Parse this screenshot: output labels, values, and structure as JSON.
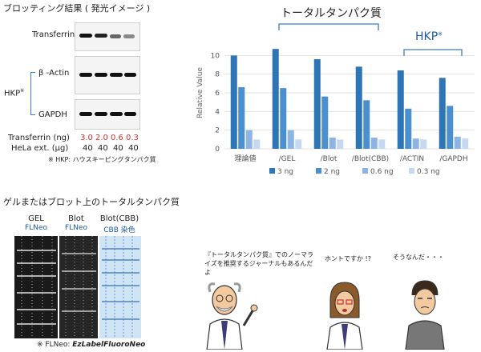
{
  "blot_section": {
    "title": "ブロッティング結果 ( 発光イメージ )",
    "row_labels": {
      "transferrin": "Transferrin",
      "actin": "β -Actin",
      "gapdh": "GAPDH"
    },
    "hkp_label": "HKP",
    "hkp_mark": "※",
    "table": {
      "transferrin_label": "Transferrin (ng)",
      "transferrin_values": [
        "3.0",
        "2.0",
        "0.6",
        "0.3"
      ],
      "hela_label": "HeLa ext. (µg)",
      "hela_values": [
        "40",
        "40",
        "40",
        "40"
      ]
    },
    "note": "※ HKP: ハウスキーピングタンパク質"
  },
  "gel_section": {
    "title": "ゲルまたはブロット上のトータルタンパク質",
    "lanes": [
      {
        "label": "GEL",
        "sub": "FLNeo"
      },
      {
        "label": "Blot",
        "sub": "FLNeo"
      },
      {
        "label": "Blot(CBB)",
        "sub": "CBB 染色"
      }
    ],
    "footnote_prefix": "※ FLNeo: ",
    "footnote_brand": "EzLabelFluoroNeo"
  },
  "chart_data": {
    "type": "bar",
    "ylabel": "Relative Value",
    "ylim": [
      0,
      12
    ],
    "yticks": [
      0,
      2,
      4,
      6,
      8,
      10
    ],
    "grid": true,
    "legend_position": "bottom",
    "group_labels": {
      "total": "トータルタンパク質",
      "hkp": "HKP",
      "hkp_mark": "※"
    },
    "categories": [
      "理論値",
      "/GEL",
      "/Blot",
      "/Blot(CBB)",
      "/ACTIN",
      "/GAPDH"
    ],
    "series": [
      {
        "name": "3 ng",
        "color": "#2e75b6",
        "values": [
          10.0,
          10.7,
          9.6,
          8.8,
          8.4,
          7.6
        ]
      },
      {
        "name": "2 ng",
        "color": "#4a8fd0",
        "values": [
          6.6,
          6.5,
          5.6,
          5.2,
          4.3,
          4.6
        ]
      },
      {
        "name": "0.6 ng",
        "color": "#8db4e2",
        "values": [
          2.0,
          2.0,
          1.2,
          1.2,
          1.1,
          1.3
        ]
      },
      {
        "name": "0.3 ng",
        "color": "#c5d9f1",
        "values": [
          1.0,
          1.0,
          1.0,
          1.0,
          1.0,
          1.1
        ]
      }
    ]
  },
  "dialogue": {
    "professor": "『トータルタンパク質』でのノーマライズを推奨するジャーナルもあるんだよ",
    "woman": "ホントですか !?",
    "man": "そうなんだ・・・"
  }
}
